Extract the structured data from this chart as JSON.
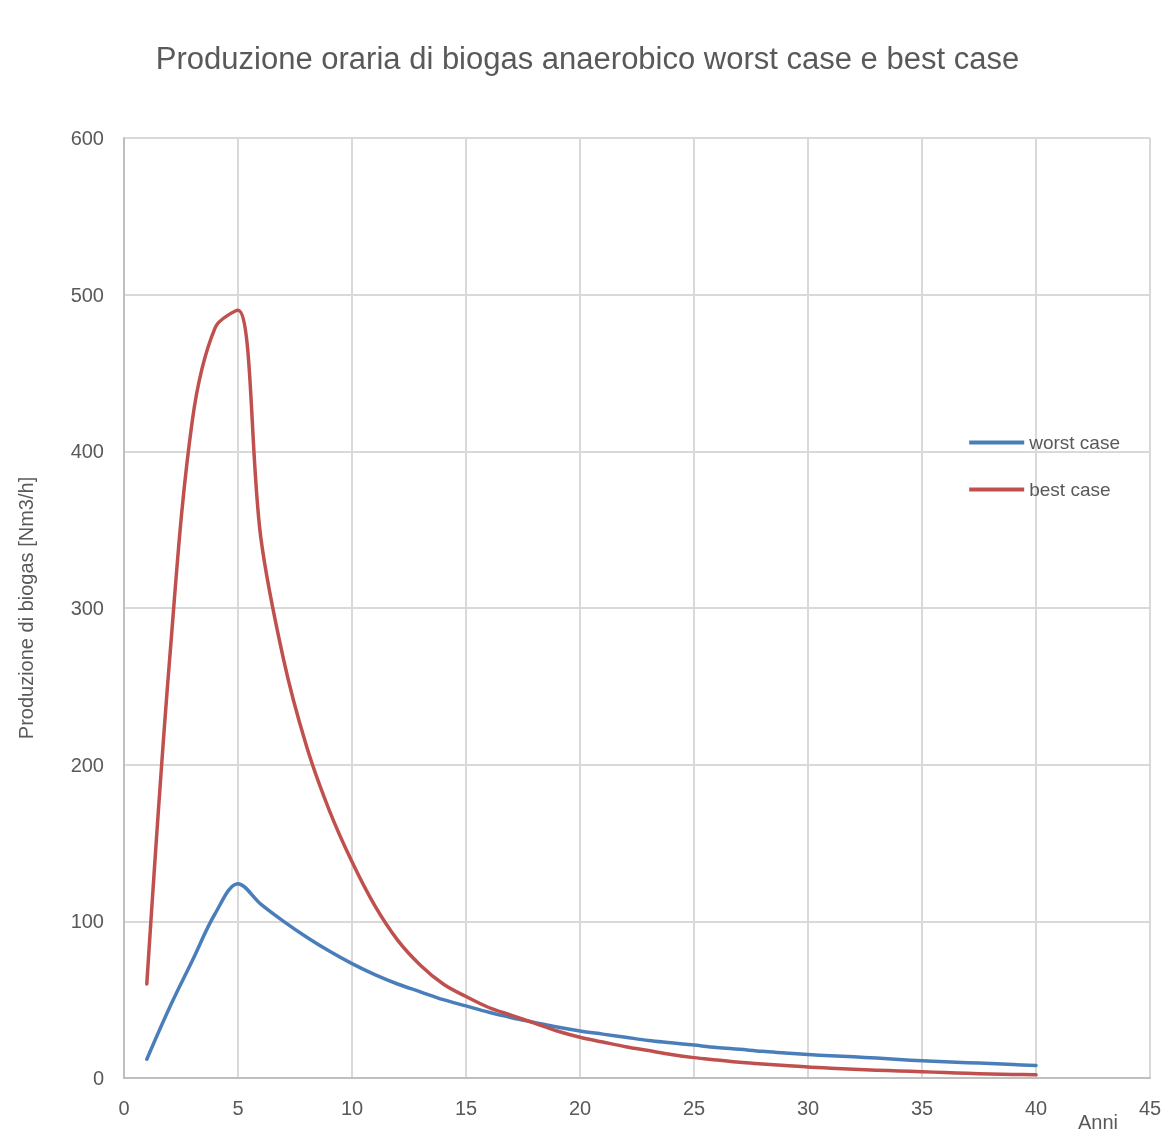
{
  "chart_data": {
    "type": "line",
    "title": "Produzione oraria di biogas anaerobico worst case e best case",
    "xlabel": "Anni",
    "ylabel": "Produzione di biogas [Nm3/h]",
    "x": [
      1,
      2,
      3,
      4,
      5,
      6,
      7,
      8,
      9,
      10,
      11,
      12,
      13,
      14,
      15,
      16,
      17,
      18,
      19,
      20,
      21,
      22,
      23,
      24,
      25,
      26,
      27,
      28,
      29,
      30,
      31,
      32,
      33,
      34,
      35,
      36,
      37,
      38,
      39,
      40
    ],
    "series": [
      {
        "name": "worst case",
        "color": "#4a7ebb",
        "values": [
          12,
          45,
          75,
          105,
          124,
          111,
          100,
          90,
          81,
          73,
          66,
          60,
          55,
          50,
          46,
          42,
          38.5,
          35.5,
          32.5,
          30,
          28,
          26,
          24,
          22.5,
          21,
          19.5,
          18.3,
          17,
          16,
          15,
          14.2,
          13.5,
          12.7,
          11.8,
          11,
          10.4,
          9.8,
          9.2,
          8.6,
          8
        ]
      },
      {
        "name": "best case",
        "color": "#c0504d",
        "values": [
          60,
          267,
          420,
          479,
          490,
          345,
          267,
          212,
          171,
          138,
          110,
          88,
          72,
          60,
          52,
          45,
          40,
          35,
          30,
          26,
          23,
          20,
          17.5,
          15,
          13,
          11.5,
          10,
          9,
          8,
          7,
          6.3,
          5.6,
          5,
          4.5,
          4,
          3.5,
          3,
          2.6,
          2.3,
          2
        ]
      }
    ],
    "xlim": [
      0,
      45
    ],
    "xticks": [
      0,
      5,
      10,
      15,
      20,
      25,
      30,
      35,
      40,
      45
    ],
    "ylim": [
      0,
      600
    ],
    "yticks": [
      0,
      100,
      200,
      300,
      400,
      500,
      600
    ],
    "grid": true,
    "legend": "right",
    "marker": "none",
    "line_style": "solid"
  }
}
